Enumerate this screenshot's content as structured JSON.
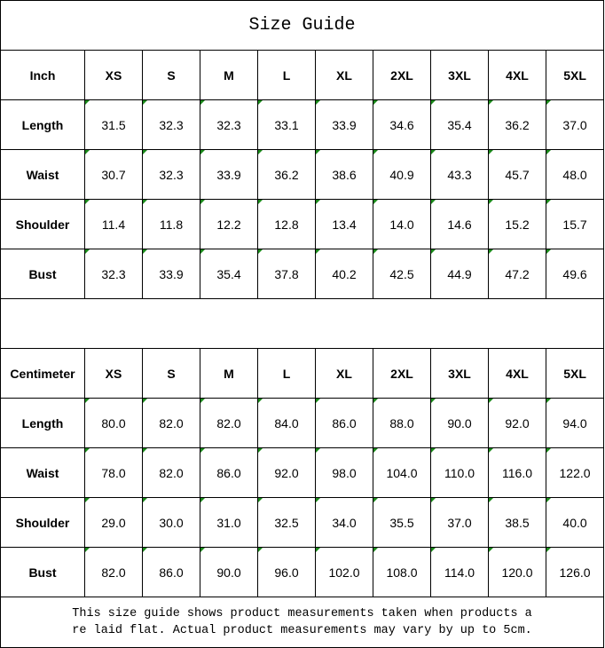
{
  "title": "Size Guide",
  "sizes": [
    "XS",
    "S",
    "M",
    "L",
    "XL",
    "2XL",
    "3XL",
    "4XL",
    "5XL"
  ],
  "inch": {
    "label": "Inch",
    "rows": [
      {
        "name": "Length",
        "values": [
          "31.5",
          "32.3",
          "32.3",
          "33.1",
          "33.9",
          "34.6",
          "35.4",
          "36.2",
          "37.0"
        ]
      },
      {
        "name": "Waist",
        "values": [
          "30.7",
          "32.3",
          "33.9",
          "36.2",
          "38.6",
          "40.9",
          "43.3",
          "45.7",
          "48.0"
        ]
      },
      {
        "name": "Shoulder",
        "values": [
          "11.4",
          "11.8",
          "12.2",
          "12.8",
          "13.4",
          "14.0",
          "14.6",
          "15.2",
          "15.7"
        ]
      },
      {
        "name": "Bust",
        "values": [
          "32.3",
          "33.9",
          "35.4",
          "37.8",
          "40.2",
          "42.5",
          "44.9",
          "47.2",
          "49.6"
        ]
      }
    ]
  },
  "cm": {
    "label": "Centimeter",
    "rows": [
      {
        "name": "Length",
        "values": [
          "80.0",
          "82.0",
          "82.0",
          "84.0",
          "86.0",
          "88.0",
          "90.0",
          "92.0",
          "94.0"
        ]
      },
      {
        "name": "Waist",
        "values": [
          "78.0",
          "82.0",
          "86.0",
          "92.0",
          "98.0",
          "104.0",
          "110.0",
          "116.0",
          "122.0"
        ]
      },
      {
        "name": "Shoulder",
        "values": [
          "29.0",
          "30.0",
          "31.0",
          "32.5",
          "34.0",
          "35.5",
          "37.0",
          "38.5",
          "40.0"
        ]
      },
      {
        "name": "Bust",
        "values": [
          "82.0",
          "86.0",
          "90.0",
          "96.0",
          "102.0",
          "108.0",
          "114.0",
          "120.0",
          "126.0"
        ]
      }
    ]
  },
  "note": {
    "line1": "This size guide shows product measurements taken when products a",
    "line2": "re laid flat. Actual product measurements may vary by up to 5cm."
  },
  "colors": {
    "cell_marker": "#1a8a1a",
    "border": "#000000"
  }
}
